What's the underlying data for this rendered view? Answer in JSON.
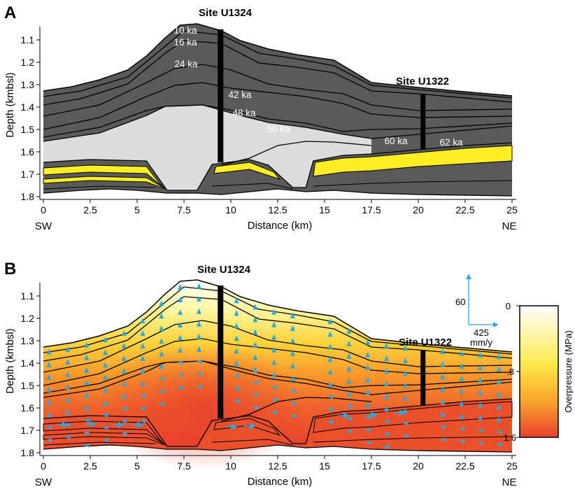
{
  "panelA": {
    "letter": "A",
    "site_left": "Site U1324",
    "site_right": "Site U1322",
    "ylabel": "Depth (kmbsl)",
    "xlabel": "Distance (km)",
    "sw": "SW",
    "ne": "NE",
    "y_ticks": [
      "1.1",
      "1.2",
      "1.3",
      "1.4",
      "1.5",
      "1.6",
      "1.7",
      "1.8"
    ],
    "x_ticks": [
      "0",
      "2.5",
      "5",
      "7.5",
      "10",
      "12.5",
      "15",
      "17.5",
      "20",
      "22.5",
      "25"
    ],
    "ages": [
      "10 ka",
      "16 ka",
      "24 ka",
      "42 ka",
      "48 ka",
      "50 ka",
      "60 ka",
      "62 ka"
    ],
    "colors": {
      "mud": "#5a5a5a",
      "sand": "#ffee22",
      "mtd": "#dcdcdc"
    }
  },
  "panelB": {
    "letter": "B",
    "site_left": "Site U1324",
    "site_right": "Site U1322",
    "ylabel": "Depth (kmbsl)",
    "xlabel": "Distance (km)",
    "sw": "SW",
    "ne": "NE",
    "y_ticks": [
      "1.1",
      "1.2",
      "1.3",
      "1.4",
      "1.5",
      "1.6",
      "1.7",
      "1.8"
    ],
    "x_ticks": [
      "0",
      "2.5",
      "5",
      "7.5",
      "10",
      "12.5",
      "15",
      "17.5",
      "20",
      "22.5",
      "25"
    ],
    "scale_vertical": "60",
    "scale_horizontal": "425",
    "scale_unit": "mm/y",
    "colorbar": {
      "label": "Overpressure (MPa)",
      "ticks": [
        "0",
        ".8",
        "1.6"
      ],
      "colors": [
        "#ffffff",
        "#ffe84a",
        "#f7a62b",
        "#e8412c"
      ]
    },
    "arrow_color": "#29a9e0"
  }
}
